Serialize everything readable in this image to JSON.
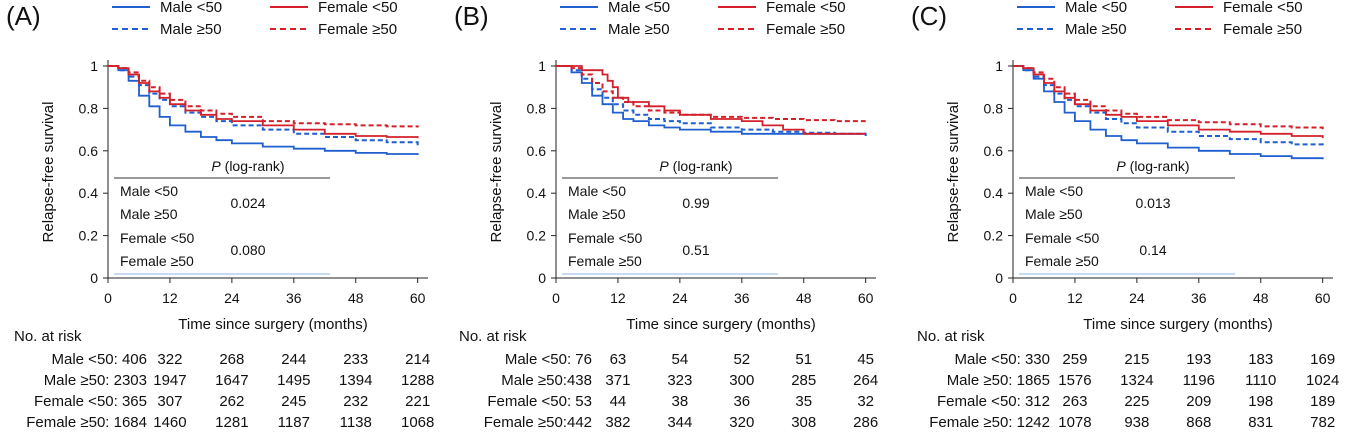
{
  "legend": {
    "entries": [
      {
        "key": "male_lt50",
        "label": "Male <50",
        "color": "#1f5fcf",
        "dashed": false
      },
      {
        "key": "male_ge50",
        "label": "Male ≥50",
        "color": "#1f5fcf",
        "dashed": true
      },
      {
        "key": "female_lt50",
        "label": "Female <50",
        "color": "#d4202a",
        "dashed": false
      },
      {
        "key": "female_ge50",
        "label": "Female ≥50",
        "color": "#d4202a",
        "dashed": true
      }
    ]
  },
  "inset_header": {
    "italic": "P",
    "rest": " (log-rank)"
  },
  "inset_labels": [
    "Male <50",
    "Male ≥50",
    "Female <50",
    "Female ≥50"
  ],
  "risk_heading": "No. at risk",
  "chart_data": [
    {
      "panel_label": "(A)",
      "type": "line",
      "ylabel": "Relapse-free survival",
      "xlabel": "Time since surgery (months)",
      "xlim": [
        0,
        62
      ],
      "ylim": [
        0,
        1
      ],
      "xticks": [
        0,
        12,
        24,
        36,
        48,
        60
      ],
      "yticks": [
        0,
        0.2,
        0.4,
        0.6,
        0.8,
        1
      ],
      "ytick_labels": [
        "0",
        "0.2",
        "0.4",
        "0.6",
        "0.8",
        "1"
      ],
      "series": [
        {
          "name": "Male <50",
          "x": [
            0,
            2,
            4,
            6,
            8,
            10,
            12,
            15,
            18,
            21,
            24,
            30,
            36,
            42,
            48,
            54,
            60
          ],
          "y": [
            1,
            0.98,
            0.93,
            0.86,
            0.81,
            0.76,
            0.72,
            0.69,
            0.665,
            0.65,
            0.635,
            0.62,
            0.61,
            0.6,
            0.59,
            0.585,
            0.58
          ]
        },
        {
          "name": "Male ≥50",
          "x": [
            0,
            2,
            4,
            6,
            8,
            10,
            12,
            15,
            18,
            21,
            24,
            30,
            36,
            42,
            48,
            54,
            60
          ],
          "y": [
            1,
            0.98,
            0.95,
            0.91,
            0.87,
            0.84,
            0.81,
            0.78,
            0.76,
            0.74,
            0.72,
            0.7,
            0.68,
            0.665,
            0.65,
            0.64,
            0.62
          ]
        },
        {
          "name": "Female <50",
          "x": [
            0,
            2,
            4,
            6,
            8,
            10,
            12,
            15,
            18,
            21,
            24,
            30,
            36,
            42,
            48,
            54,
            60
          ],
          "y": [
            1,
            0.99,
            0.96,
            0.92,
            0.88,
            0.85,
            0.82,
            0.79,
            0.77,
            0.75,
            0.74,
            0.72,
            0.7,
            0.68,
            0.67,
            0.665,
            0.66
          ]
        },
        {
          "name": "Female ≥50",
          "x": [
            0,
            2,
            4,
            6,
            8,
            10,
            12,
            15,
            18,
            21,
            24,
            30,
            36,
            42,
            48,
            54,
            60
          ],
          "y": [
            1,
            0.99,
            0.97,
            0.93,
            0.9,
            0.87,
            0.84,
            0.81,
            0.79,
            0.775,
            0.76,
            0.74,
            0.73,
            0.725,
            0.72,
            0.715,
            0.71
          ]
        }
      ],
      "pvalues": [
        "0.024",
        "0.080"
      ],
      "at_risk": [
        {
          "label": "Male <50: 406",
          "values": [
            "322",
            "268",
            "244",
            "233",
            "214"
          ]
        },
        {
          "label": "Male ≥50: 2303",
          "values": [
            "1947",
            "1647",
            "1495",
            "1394",
            "1288"
          ]
        },
        {
          "label": "Female <50: 365",
          "values": [
            "307",
            "262",
            "245",
            "232",
            "221"
          ]
        },
        {
          "label": "Female ≥50: 1684",
          "values": [
            "1460",
            "1281",
            "1187",
            "1138",
            "1068"
          ]
        }
      ]
    },
    {
      "panel_label": "(B)",
      "type": "line",
      "ylabel": "Relapse-free survival",
      "xlabel": "Time since surgery (months)",
      "xlim": [
        0,
        62
      ],
      "ylim": [
        0,
        1
      ],
      "xticks": [
        0,
        12,
        24,
        36,
        48,
        60
      ],
      "yticks": [
        0,
        0.2,
        0.4,
        0.6,
        0.8,
        1
      ],
      "ytick_labels": [
        "0",
        "0.2",
        "0.4",
        "0.6",
        "0.8",
        "1"
      ],
      "series": [
        {
          "name": "Male <50",
          "x": [
            0,
            3,
            5,
            7,
            9,
            11,
            13,
            15,
            18,
            21,
            24,
            30,
            36,
            42,
            48,
            54,
            60
          ],
          "y": [
            1,
            0.97,
            0.92,
            0.86,
            0.82,
            0.78,
            0.75,
            0.74,
            0.72,
            0.71,
            0.7,
            0.69,
            0.68,
            0.68,
            0.68,
            0.68,
            0.68
          ]
        },
        {
          "name": "Male ≥50",
          "x": [
            0,
            3,
            5,
            7,
            9,
            11,
            13,
            15,
            18,
            21,
            24,
            30,
            36,
            42,
            48,
            54,
            60
          ],
          "y": [
            1,
            0.98,
            0.94,
            0.89,
            0.85,
            0.82,
            0.79,
            0.77,
            0.75,
            0.74,
            0.73,
            0.71,
            0.7,
            0.69,
            0.685,
            0.68,
            0.67
          ]
        },
        {
          "name": "Female <50",
          "x": [
            0,
            3,
            5,
            7,
            9,
            10,
            11,
            12,
            14,
            18,
            21,
            24,
            30,
            36,
            40,
            44,
            48,
            60
          ],
          "y": [
            1,
            1,
            0.98,
            0.98,
            0.96,
            0.93,
            0.9,
            0.85,
            0.83,
            0.81,
            0.79,
            0.77,
            0.75,
            0.74,
            0.72,
            0.7,
            0.68,
            0.68
          ]
        },
        {
          "name": "Female ≥50",
          "x": [
            0,
            3,
            5,
            7,
            9,
            11,
            13,
            15,
            18,
            21,
            24,
            30,
            36,
            42,
            48,
            54,
            60
          ],
          "y": [
            1,
            0.99,
            0.96,
            0.92,
            0.88,
            0.85,
            0.83,
            0.81,
            0.79,
            0.78,
            0.77,
            0.76,
            0.755,
            0.75,
            0.745,
            0.74,
            0.74
          ]
        }
      ],
      "pvalues": [
        "0.99",
        "0.51"
      ],
      "at_risk": [
        {
          "label": "Male <50: 76",
          "values": [
            "63",
            "54",
            "52",
            "51",
            "45"
          ]
        },
        {
          "label": "Male ≥50:438",
          "values": [
            "371",
            "323",
            "300",
            "285",
            "264"
          ]
        },
        {
          "label": "Female <50: 53",
          "values": [
            "44",
            "38",
            "36",
            "35",
            "32"
          ]
        },
        {
          "label": "Female ≥50:442",
          "values": [
            "382",
            "344",
            "320",
            "308",
            "286"
          ]
        }
      ]
    },
    {
      "panel_label": "(C)",
      "type": "line",
      "ylabel": "Relapse-free survival",
      "xlabel": "Time since surgery (months)",
      "xlim": [
        0,
        62
      ],
      "ylim": [
        0,
        1
      ],
      "xticks": [
        0,
        12,
        24,
        36,
        48,
        60
      ],
      "yticks": [
        0,
        0.2,
        0.4,
        0.6,
        0.8,
        1
      ],
      "ytick_labels": [
        "0",
        "0.2",
        "0.4",
        "0.6",
        "0.8",
        "1"
      ],
      "series": [
        {
          "name": "Male <50",
          "x": [
            0,
            2,
            4,
            6,
            8,
            10,
            12,
            15,
            18,
            21,
            24,
            30,
            36,
            42,
            48,
            54,
            60
          ],
          "y": [
            1,
            0.98,
            0.94,
            0.88,
            0.83,
            0.78,
            0.74,
            0.7,
            0.67,
            0.65,
            0.635,
            0.615,
            0.6,
            0.585,
            0.575,
            0.565,
            0.56
          ]
        },
        {
          "name": "Male ≥50",
          "x": [
            0,
            2,
            4,
            6,
            8,
            10,
            12,
            15,
            18,
            21,
            24,
            30,
            36,
            42,
            48,
            54,
            60
          ],
          "y": [
            1,
            0.98,
            0.95,
            0.91,
            0.87,
            0.84,
            0.81,
            0.78,
            0.75,
            0.73,
            0.71,
            0.69,
            0.67,
            0.655,
            0.64,
            0.63,
            0.62
          ]
        },
        {
          "name": "Female <50",
          "x": [
            0,
            2,
            4,
            6,
            8,
            10,
            12,
            15,
            18,
            21,
            24,
            30,
            36,
            42,
            48,
            54,
            60
          ],
          "y": [
            1,
            0.99,
            0.96,
            0.92,
            0.88,
            0.85,
            0.82,
            0.79,
            0.77,
            0.76,
            0.74,
            0.72,
            0.7,
            0.69,
            0.68,
            0.67,
            0.66
          ]
        },
        {
          "name": "Female ≥50",
          "x": [
            0,
            2,
            4,
            6,
            8,
            10,
            12,
            15,
            18,
            21,
            24,
            30,
            36,
            42,
            48,
            54,
            60
          ],
          "y": [
            1,
            0.99,
            0.97,
            0.94,
            0.9,
            0.87,
            0.84,
            0.81,
            0.79,
            0.775,
            0.76,
            0.745,
            0.735,
            0.725,
            0.715,
            0.71,
            0.7
          ]
        }
      ],
      "pvalues": [
        "0.013",
        "0.14"
      ],
      "at_risk": [
        {
          "label": "Male <50: 330",
          "values": [
            "259",
            "215",
            "193",
            "183",
            "169"
          ]
        },
        {
          "label": "Male ≥50: 1865",
          "values": [
            "1576",
            "1324",
            "1196",
            "1110",
            "1024"
          ]
        },
        {
          "label": "Female <50: 312",
          "values": [
            "263",
            "225",
            "209",
            "198",
            "189"
          ]
        },
        {
          "label": "Female ≥50: 1242",
          "values": [
            "1078",
            "938",
            "868",
            "831",
            "782"
          ]
        }
      ]
    }
  ]
}
